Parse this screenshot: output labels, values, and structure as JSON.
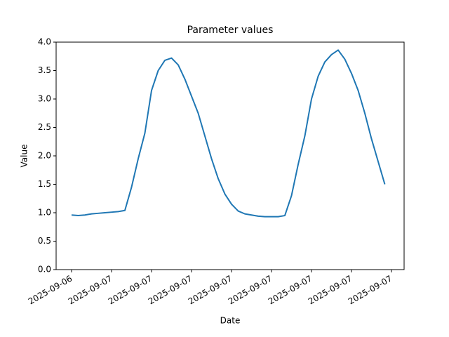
{
  "chart_data": {
    "type": "line",
    "title": "Parameter values",
    "x_label": "Date",
    "y_label": "Value",
    "categories": [
      "2025-09-06",
      null,
      null,
      null,
      null,
      null,
      "2025-09-07",
      null,
      null,
      null,
      null,
      null,
      "2025-09-07",
      null,
      null,
      null,
      null,
      null,
      "2025-09-07",
      null,
      null,
      null,
      null,
      null,
      "2025-09-07",
      null,
      null,
      null,
      null,
      null,
      "2025-09-07",
      null,
      null,
      null,
      null,
      null,
      "2025-09-07",
      null,
      null,
      null,
      null,
      null,
      "2025-09-07",
      null,
      null,
      null,
      null,
      null,
      "2025-09-07"
    ],
    "values": [
      0.96,
      0.95,
      0.96,
      0.98,
      0.99,
      1.0,
      1.01,
      1.02,
      1.04,
      1.45,
      1.95,
      2.4,
      3.15,
      3.5,
      3.68,
      3.72,
      3.6,
      3.35,
      3.05,
      2.75,
      2.35,
      1.95,
      1.6,
      1.33,
      1.15,
      1.03,
      0.98,
      0.96,
      0.94,
      0.93,
      0.93,
      0.93,
      0.95,
      1.3,
      1.85,
      2.35,
      3.0,
      3.4,
      3.65,
      3.78,
      3.86,
      3.7,
      3.45,
      3.15,
      2.75,
      2.3,
      1.9,
      1.5,
      null
    ],
    "color": "#1f77b4",
    "ylim": [
      0,
      4
    ],
    "yticks": [
      {
        "value": 0,
        "label": "0.0"
      },
      0.5,
      {
        "value": 1,
        "label": "1.0"
      },
      1.5,
      {
        "value": 2,
        "label": "2.0"
      },
      2.5,
      {
        "value": 3,
        "label": "3.0"
      },
      3.5,
      {
        "value": 4,
        "label": "4.0"
      }
    ]
  }
}
